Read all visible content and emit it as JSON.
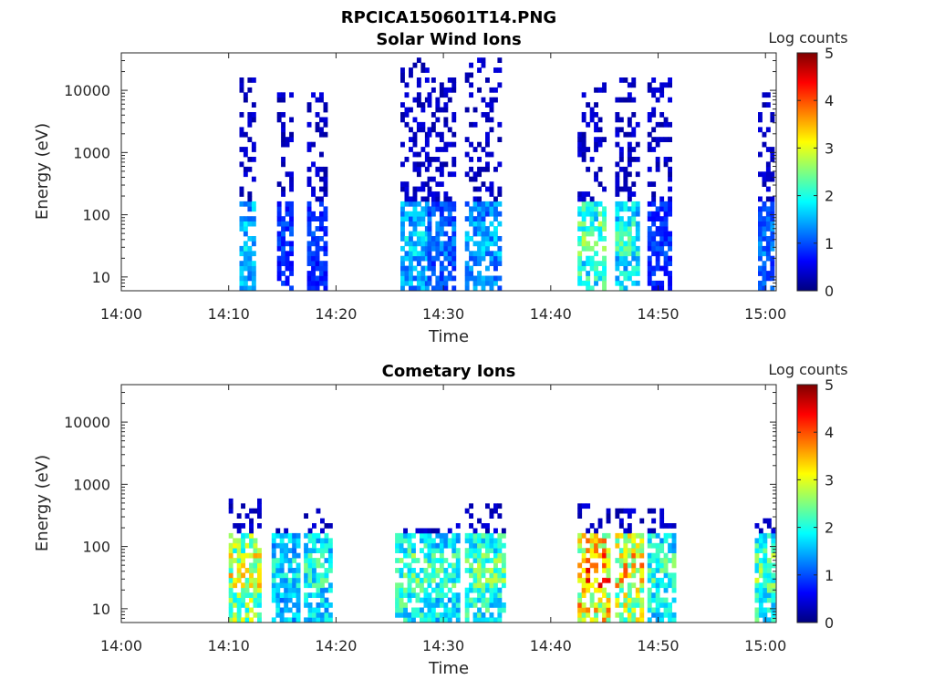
{
  "figure": {
    "title": "RPCICA150601T14.PNG"
  },
  "chart_data": [
    {
      "type": "heatmap",
      "title": "Solar Wind Ions",
      "xlabel": "Time",
      "ylabel": "Energy (eV)",
      "yscale": "log",
      "ylim": [
        6,
        40000
      ],
      "xlim": [
        "14:00",
        "15:01"
      ],
      "xticks": [
        "14:00",
        "14:10",
        "14:20",
        "14:30",
        "14:40",
        "14:50",
        "15:00"
      ],
      "yticks": [
        "10",
        "100",
        "1000",
        "10000"
      ],
      "colorbar": {
        "label": "Log counts",
        "min": 0,
        "max": 5,
        "ticks": [
          "0",
          "1",
          "2",
          "3",
          "4",
          "5"
        ],
        "colormap": "jet"
      },
      "bursts": [
        {
          "start": "14:11",
          "end": "14:12.5",
          "emin": 6,
          "emax": 15000,
          "peak_log_counts": 1.8
        },
        {
          "start": "14:14.5",
          "end": "14:16",
          "emin": 6,
          "emax": 10000,
          "peak_log_counts": 1.0
        },
        {
          "start": "14:17.3",
          "end": "14:19",
          "emin": 6,
          "emax": 10000,
          "peak_log_counts": 1.0
        },
        {
          "start": "14:26",
          "end": "14:28.3",
          "emin": 6,
          "emax": 35000,
          "peak_log_counts": 1.8
        },
        {
          "start": "14:28.5",
          "end": "14:31",
          "emin": 6,
          "emax": 15000,
          "peak_log_counts": 1.3
        },
        {
          "start": "14:32",
          "end": "14:35.3",
          "emin": 6,
          "emax": 35000,
          "peak_log_counts": 1.6
        },
        {
          "start": "14:42.5",
          "end": "14:45",
          "emin": 6,
          "emax": 15000,
          "peak_log_counts": 2.5
        },
        {
          "start": "14:46",
          "end": "14:48",
          "emin": 6,
          "emax": 15000,
          "peak_log_counts": 2.2
        },
        {
          "start": "14:49",
          "end": "14:51",
          "emin": 6,
          "emax": 15000,
          "peak_log_counts": 1.0
        },
        {
          "start": "14:59.3",
          "end": "15:00.8",
          "emin": 6,
          "emax": 10000,
          "peak_log_counts": 1.3
        }
      ]
    },
    {
      "type": "heatmap",
      "title": "Cometary Ions",
      "xlabel": "Time",
      "ylabel": "Energy (eV)",
      "yscale": "log",
      "ylim": [
        6,
        40000
      ],
      "xlim": [
        "14:00",
        "15:01"
      ],
      "xticks": [
        "14:00",
        "14:10",
        "14:20",
        "14:30",
        "14:40",
        "14:50",
        "15:00"
      ],
      "yticks": [
        "10",
        "100",
        "1000",
        "10000"
      ],
      "colorbar": {
        "label": "Log counts",
        "min": 0,
        "max": 5,
        "ticks": [
          "0",
          "1",
          "2",
          "3",
          "4",
          "5"
        ],
        "colormap": "jet"
      },
      "bursts": [
        {
          "start": "14:10",
          "end": "14:12.8",
          "emin": 6,
          "emax": 600,
          "peak_log_counts": 3.2
        },
        {
          "start": "14:14",
          "end": "14:16.3",
          "emin": 6,
          "emax": 200,
          "peak_log_counts": 2.0
        },
        {
          "start": "14:17",
          "end": "14:19.3",
          "emin": 6,
          "emax": 400,
          "peak_log_counts": 2.2
        },
        {
          "start": "14:25.5",
          "end": "14:28.5",
          "emin": 6,
          "emax": 200,
          "peak_log_counts": 2.5
        },
        {
          "start": "14:28.5",
          "end": "14:31.5",
          "emin": 6,
          "emax": 300,
          "peak_log_counts": 2.3
        },
        {
          "start": "14:32",
          "end": "14:35.5",
          "emin": 6,
          "emax": 500,
          "peak_log_counts": 2.5
        },
        {
          "start": "14:42.5",
          "end": "14:45.5",
          "emin": 6,
          "emax": 500,
          "peak_log_counts": 4.0
        },
        {
          "start": "14:46",
          "end": "14:48.5",
          "emin": 6,
          "emax": 400,
          "peak_log_counts": 3.5
        },
        {
          "start": "14:49",
          "end": "14:51.5",
          "emin": 6,
          "emax": 400,
          "peak_log_counts": 2.3
        },
        {
          "start": "14:59",
          "end": "15:00.8",
          "emin": 6,
          "emax": 300,
          "peak_log_counts": 2.6
        }
      ]
    }
  ]
}
